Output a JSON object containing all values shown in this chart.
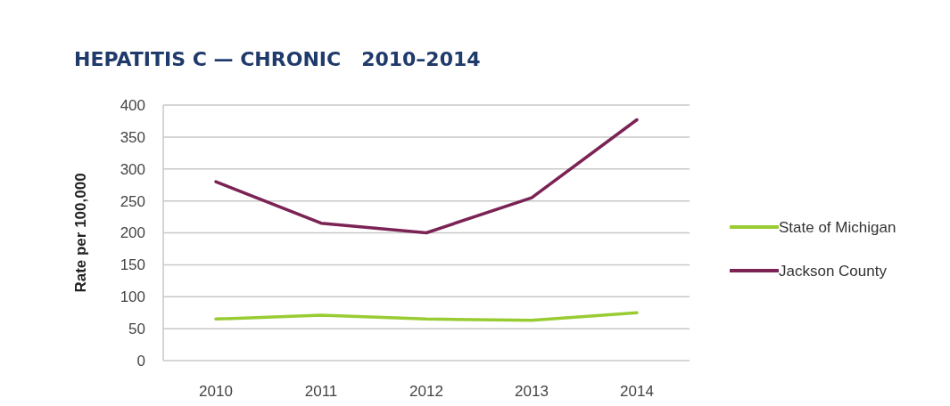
{
  "chart_data": {
    "type": "line",
    "title": "HEPATITIS C — CHRONIC   2010–2014",
    "ylabel": "Rate per 100,000",
    "categories": [
      "2010",
      "2011",
      "2012",
      "2013",
      "2014"
    ],
    "series": [
      {
        "name": "State of Michigan",
        "color": "#99cc33",
        "values": [
          65,
          71,
          65,
          63,
          75
        ]
      },
      {
        "name": "Jackson County",
        "color": "#7b2355",
        "values": [
          280,
          215,
          200,
          255,
          377
        ]
      }
    ],
    "ylim": [
      0,
      400
    ],
    "yticks": [
      0,
      50,
      100,
      150,
      200,
      250,
      300,
      350,
      400
    ],
    "grid": "y",
    "legend": "right",
    "marker": "none",
    "line_style": "solid"
  }
}
